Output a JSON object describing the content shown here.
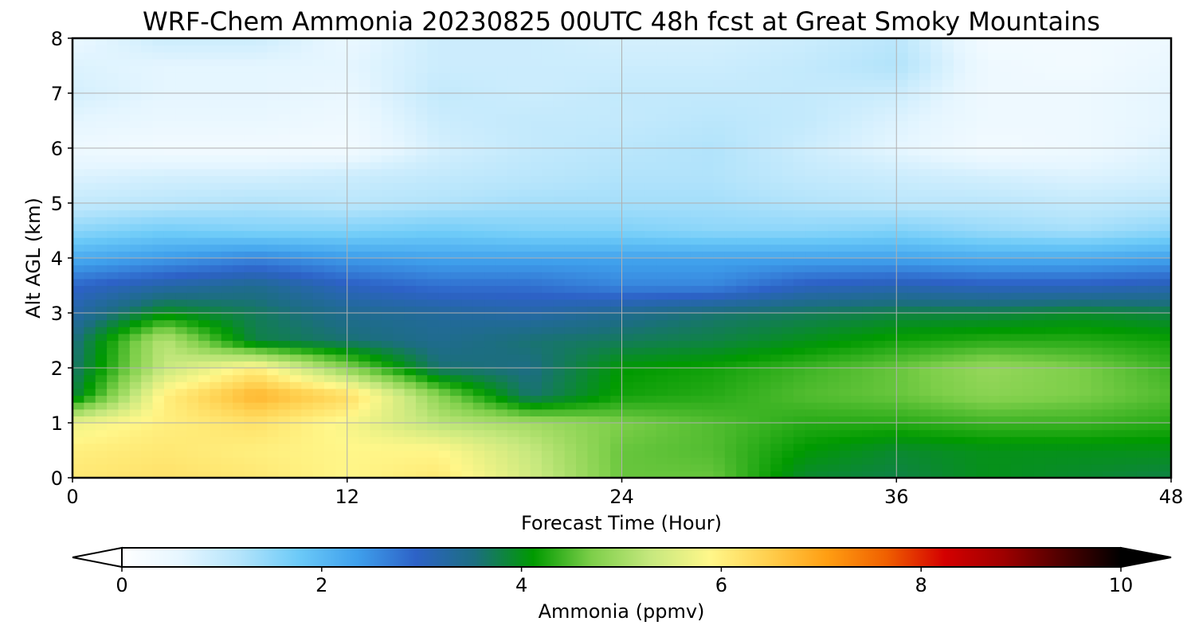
{
  "chart_data": {
    "type": "heatmap",
    "title": "WRF-Chem Ammonia  20230825 00UTC 48h fcst at Great Smoky Mountains",
    "xlabel": "Forecast Time (Hour)",
    "ylabel": "Alt AGL (km)",
    "xlim": [
      0,
      48
    ],
    "ylim": [
      0,
      8
    ],
    "xticks": [
      "0",
      "12",
      "24",
      "36",
      "48"
    ],
    "yticks": [
      "0",
      "1",
      "2",
      "3",
      "4",
      "5",
      "6",
      "7",
      "8"
    ],
    "grid": true,
    "x": [
      0,
      4,
      8,
      12,
      16,
      20,
      24,
      28,
      32,
      36,
      40,
      44,
      48
    ],
    "y": [
      0,
      0.5,
      1,
      1.5,
      2,
      2.5,
      3,
      3.5,
      4,
      4.5,
      5,
      5.5,
      6,
      6.5,
      7,
      7.5,
      8
    ],
    "z": [
      [
        6.1,
        6.2,
        6.1,
        5.9,
        6.1,
        5.4,
        4.6,
        4.6,
        3.9,
        3.8,
        4.0,
        3.9,
        3.8
      ],
      [
        6.0,
        6.1,
        6.0,
        5.9,
        5.9,
        5.3,
        4.6,
        4.5,
        4.1,
        3.9,
        4.0,
        4.0,
        4.0
      ],
      [
        5.7,
        6.0,
        6.2,
        5.8,
        5.2,
        5.0,
        4.7,
        4.5,
        4.3,
        4.3,
        4.4,
        4.4,
        4.3
      ],
      [
        3.8,
        6.0,
        6.8,
        6.3,
        4.8,
        3.6,
        4.2,
        4.3,
        4.5,
        4.6,
        4.8,
        4.7,
        4.5
      ],
      [
        3.6,
        5.3,
        6.0,
        4.8,
        3.6,
        3.5,
        4.1,
        4.2,
        4.4,
        4.6,
        4.9,
        4.7,
        4.4
      ],
      [
        3.5,
        5.2,
        3.8,
        3.6,
        3.4,
        3.6,
        3.7,
        3.8,
        4.0,
        4.2,
        4.3,
        4.3,
        4.2
      ],
      [
        3.2,
        4.0,
        3.7,
        3.4,
        3.3,
        3.2,
        3.4,
        3.6,
        3.7,
        3.8,
        3.8,
        3.9,
        3.8
      ],
      [
        2.9,
        3.2,
        3.4,
        3.0,
        2.8,
        2.8,
        2.6,
        2.6,
        3.0,
        3.1,
        3.0,
        3.0,
        3.1
      ],
      [
        2.2,
        2.4,
        2.6,
        2.4,
        2.3,
        2.3,
        2.3,
        2.3,
        2.3,
        2.3,
        2.2,
        2.2,
        2.3
      ],
      [
        1.5,
        1.7,
        1.6,
        1.6,
        1.7,
        1.6,
        1.6,
        1.5,
        1.5,
        1.6,
        1.4,
        1.3,
        1.5
      ],
      [
        1.0,
        1.1,
        1.2,
        1.1,
        1.2,
        1.3,
        1.3,
        1.3,
        1.2,
        1.1,
        1.1,
        1.0,
        1.1
      ],
      [
        0.7,
        0.8,
        0.8,
        0.9,
        1.0,
        1.1,
        1.2,
        1.2,
        1.0,
        0.9,
        0.8,
        0.7,
        0.8
      ],
      [
        0.4,
        0.3,
        0.3,
        0.3,
        0.8,
        1.0,
        1.1,
        1.2,
        0.9,
        0.6,
        0.3,
        0.4,
        0.7
      ],
      [
        0.6,
        0.5,
        0.5,
        0.4,
        0.9,
        1.0,
        1.0,
        1.1,
        1.0,
        0.7,
        0.4,
        0.4,
        0.6
      ],
      [
        0.8,
        0.6,
        0.6,
        0.5,
        1.0,
        0.9,
        1.0,
        1.0,
        1.0,
        0.9,
        0.4,
        0.4,
        0.6
      ],
      [
        0.7,
        0.6,
        0.6,
        0.6,
        0.9,
        0.9,
        0.9,
        0.9,
        1.0,
        1.2,
        0.4,
        0.3,
        0.5
      ],
      [
        0.5,
        0.9,
        0.9,
        0.5,
        0.9,
        0.9,
        0.8,
        0.8,
        0.9,
        1.1,
        0.3,
        0.3,
        0.4
      ]
    ],
    "colorbar": {
      "label": "Ammonia  (ppmv)",
      "min": 0,
      "max": 10,
      "ticks": [
        "0",
        "2",
        "4",
        "6",
        "8",
        "10"
      ],
      "extend": "both",
      "colors": [
        "#ffffff",
        "#e6f6ff",
        "#b4e4fb",
        "#6ccaf8",
        "#3fa0ec",
        "#2d62c7",
        "#1c6e80",
        "#009a00",
        "#7ecf4a",
        "#c6e87e",
        "#fff78a",
        "#ffcf4e",
        "#ff9e12",
        "#f06000",
        "#d40000",
        "#9e0000",
        "#4e0000",
        "#000000"
      ]
    }
  }
}
